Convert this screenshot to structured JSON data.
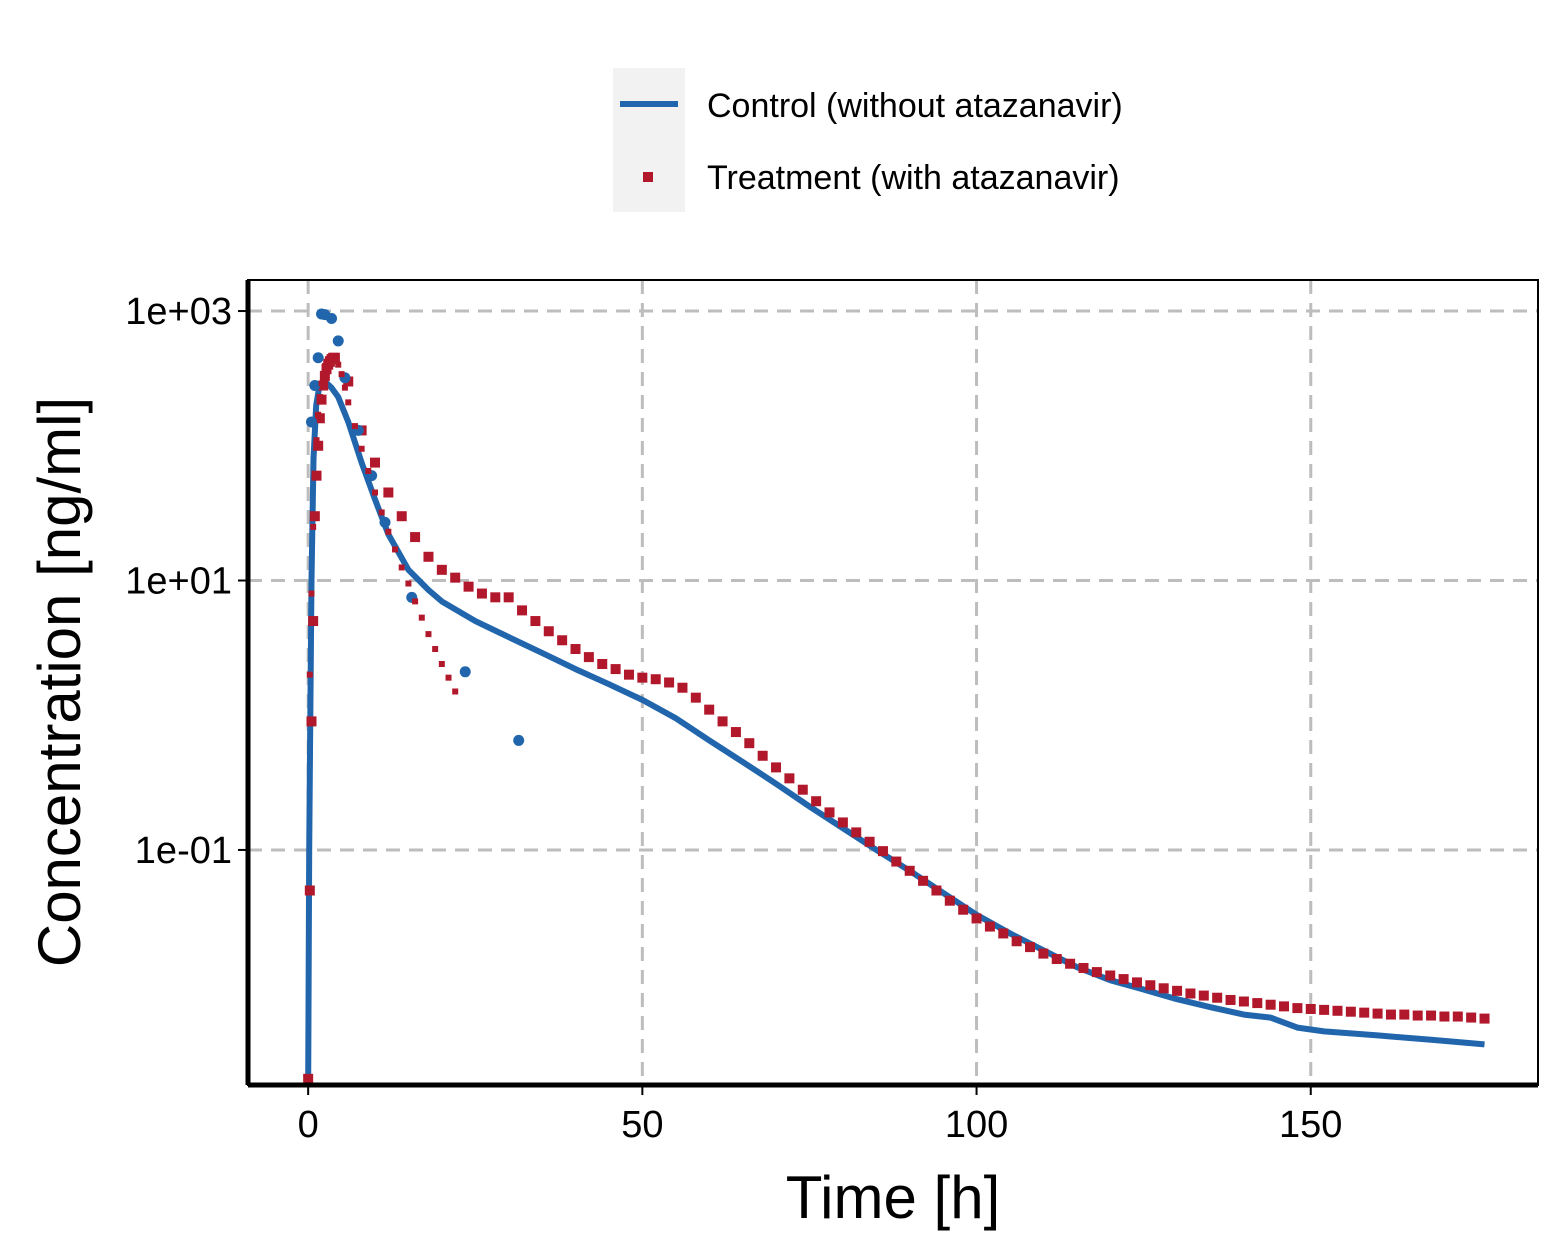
{
  "chart_data": {
    "type": "line",
    "xlabel": "Time [h]",
    "ylabel": "Concentration [ng/ml]",
    "xlim": [
      -9,
      184
    ],
    "ylim": [
      0.0018,
      1700
    ],
    "yscale": "log",
    "x_ticks": [
      0,
      50,
      100,
      150
    ],
    "x_tick_labels": [
      "0",
      "50",
      "100",
      "150"
    ],
    "y_ticks": [
      1000,
      10,
      0.1
    ],
    "y_tick_labels": [
      "1e+03",
      "1e+01",
      "1e-01"
    ],
    "grid": true,
    "legend": {
      "position": "top",
      "entries": [
        {
          "label": "Control (without atazanavir)",
          "key": "control"
        },
        {
          "label": "Treatment (with atazanavir)",
          "key": "treatment"
        }
      ]
    },
    "series": [
      {
        "name": "Control (without atazanavir)",
        "key": "control",
        "style": "line",
        "color": "#2166ac",
        "x": [
          0,
          0.15,
          0.3,
          0.5,
          0.8,
          1.2,
          1.7,
          2.5,
          3.5,
          4.5,
          6,
          8,
          10,
          12,
          15,
          18,
          20,
          25,
          30,
          35,
          40,
          45,
          50,
          55,
          60,
          65,
          70,
          75,
          80,
          85,
          90,
          95,
          100,
          105,
          110,
          115,
          120,
          125,
          130,
          135,
          140,
          144,
          148,
          152,
          160,
          168,
          176
        ],
        "y": [
          0.002,
          0.1,
          0.8,
          10,
          80,
          200,
          280,
          300,
          270,
          230,
          150,
          75,
          40,
          22,
          12,
          8.5,
          7,
          5,
          3.8,
          2.9,
          2.2,
          1.7,
          1.3,
          0.95,
          0.65,
          0.45,
          0.31,
          0.21,
          0.145,
          0.1,
          0.07,
          0.048,
          0.033,
          0.024,
          0.018,
          0.0135,
          0.0108,
          0.0092,
          0.0078,
          0.0068,
          0.006,
          0.0057,
          0.0048,
          0.0045,
          0.0042,
          0.0039,
          0.0036
        ]
      },
      {
        "name": "Treatment (with atazanavir)",
        "key": "treatment",
        "style": "squares",
        "color": "#b2182b",
        "x": [
          0,
          0.25,
          0.5,
          0.75,
          1,
          1.25,
          1.5,
          1.75,
          2,
          2.25,
          2.5,
          2.75,
          3,
          3.25,
          3.5,
          3.75,
          4,
          6,
          8,
          10,
          12,
          14,
          16,
          18,
          20,
          22,
          24,
          26,
          28,
          30,
          32,
          34,
          36,
          38,
          40,
          42,
          44,
          46,
          48,
          50,
          52,
          54,
          56,
          58,
          60,
          62,
          64,
          66,
          68,
          70,
          72,
          74,
          76,
          78,
          80,
          82,
          84,
          86,
          88,
          90,
          92,
          94,
          96,
          98,
          100,
          102,
          104,
          106,
          108,
          110,
          112,
          114,
          116,
          118,
          120,
          122,
          124,
          126,
          128,
          130,
          132,
          134,
          136,
          138,
          140,
          142,
          144,
          146,
          148,
          150,
          152,
          154,
          156,
          158,
          160,
          162,
          164,
          166,
          168,
          170,
          172,
          174,
          176
        ],
        "y": [
          0.002,
          0.05,
          0.9,
          5,
          30,
          60,
          100,
          160,
          220,
          280,
          330,
          370,
          400,
          420,
          440,
          450,
          450,
          300,
          130,
          75,
          45,
          30,
          21,
          15,
          12,
          10.5,
          9,
          8,
          7.5,
          7.5,
          6,
          5,
          4.2,
          3.6,
          3.1,
          2.7,
          2.4,
          2.2,
          2.0,
          1.9,
          1.85,
          1.75,
          1.6,
          1.35,
          1.1,
          0.9,
          0.75,
          0.62,
          0.5,
          0.41,
          0.34,
          0.28,
          0.23,
          0.19,
          0.16,
          0.135,
          0.115,
          0.098,
          0.082,
          0.07,
          0.059,
          0.05,
          0.042,
          0.036,
          0.031,
          0.027,
          0.024,
          0.021,
          0.019,
          0.017,
          0.0155,
          0.0143,
          0.0133,
          0.0124,
          0.0117,
          0.011,
          0.0104,
          0.0099,
          0.0094,
          0.009,
          0.0086,
          0.0083,
          0.008,
          0.0077,
          0.0075,
          0.0073,
          0.0071,
          0.0069,
          0.0067,
          0.0066,
          0.0065,
          0.0064,
          0.0063,
          0.0062,
          0.0061,
          0.006,
          0.006,
          0.0059,
          0.0059,
          0.0058,
          0.0058,
          0.0057,
          0.0056
        ]
      },
      {
        "key": "control_obs",
        "style": "points",
        "color": "#2166ac",
        "x": [
          0.5,
          1,
          1.5,
          2,
          2.5,
          3.5,
          4.5,
          5.5,
          7.5,
          9.5,
          11.5,
          15.5,
          23.5,
          31.5
        ],
        "y": [
          150,
          280,
          450,
          950,
          940,
          880,
          600,
          320,
          130,
          60,
          27,
          7.5,
          2.1,
          0.65
        ]
      },
      {
        "key": "treatment_obs",
        "style": "dots-small",
        "color": "#b2182b",
        "x": [
          0.25,
          0.5,
          0.75,
          1,
          1.25,
          1.5,
          1.75,
          2,
          2.25,
          2.5,
          2.75,
          3,
          3.25,
          3.5,
          3.75,
          4,
          4.5,
          5,
          5.5,
          6,
          7,
          8,
          9,
          10,
          11,
          12,
          13,
          14,
          15,
          16,
          17,
          18,
          19,
          20,
          21,
          22
        ],
        "y": [
          2,
          8,
          25,
          60,
          110,
          170,
          230,
          290,
          340,
          390,
          420,
          440,
          450,
          455,
          450,
          440,
          400,
          340,
          270,
          210,
          140,
          95,
          65,
          45,
          32,
          23,
          17,
          12.5,
          9.5,
          7,
          5.3,
          4,
          3.1,
          2.4,
          1.9,
          1.5
        ]
      }
    ]
  }
}
